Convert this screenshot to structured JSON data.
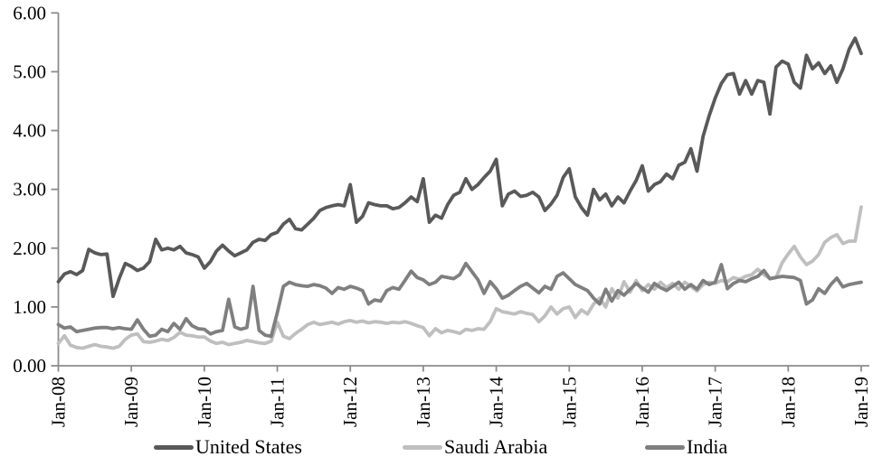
{
  "chart_data": {
    "type": "line",
    "title": "",
    "xlabel": "",
    "ylabel": "",
    "grid": false,
    "background": "#ffffff",
    "axis_color": "#8c8c8c",
    "legend_position": "bottom",
    "x_axis": {
      "frequency": "monthly",
      "start": "Jan-08",
      "end": "Jan-19",
      "tick_labels": [
        "Jan-08",
        "Jan-09",
        "Jan-10",
        "Jan-11",
        "Jan-12",
        "Jan-13",
        "Jan-14",
        "Jan-15",
        "Jan-16",
        "Jan-17",
        "Jan-18",
        "Jan-19"
      ]
    },
    "y_axis": {
      "min": 0,
      "max": 6,
      "step": 1,
      "tick_labels": [
        "0.00",
        "1.00",
        "2.00",
        "3.00",
        "4.00",
        "5.00",
        "6.00"
      ]
    },
    "series": [
      {
        "name": "United States",
        "color": "#595959",
        "values": [
          1.43,
          1.56,
          1.6,
          1.55,
          1.62,
          1.98,
          1.92,
          1.89,
          1.9,
          1.18,
          1.48,
          1.74,
          1.69,
          1.62,
          1.66,
          1.77,
          2.15,
          1.97,
          2.0,
          1.97,
          2.03,
          1.92,
          1.89,
          1.85,
          1.66,
          1.77,
          1.95,
          2.05,
          1.95,
          1.87,
          1.92,
          1.97,
          2.1,
          2.15,
          2.13,
          2.23,
          2.27,
          2.41,
          2.49,
          2.33,
          2.31,
          2.41,
          2.51,
          2.64,
          2.69,
          2.72,
          2.74,
          2.72,
          3.08,
          2.44,
          2.54,
          2.77,
          2.74,
          2.72,
          2.72,
          2.67,
          2.69,
          2.77,
          2.87,
          2.79,
          3.18,
          2.44,
          2.56,
          2.51,
          2.74,
          2.9,
          2.95,
          3.18,
          3.0,
          3.08,
          3.2,
          3.31,
          3.51,
          2.72,
          2.92,
          2.97,
          2.88,
          2.9,
          2.95,
          2.87,
          2.64,
          2.75,
          2.9,
          3.2,
          3.35,
          2.87,
          2.69,
          2.56,
          3.0,
          2.82,
          2.92,
          2.72,
          2.87,
          2.77,
          2.97,
          3.15,
          3.4,
          2.97,
          3.08,
          3.13,
          3.26,
          3.18,
          3.41,
          3.46,
          3.69,
          3.31,
          3.9,
          4.25,
          4.55,
          4.8,
          4.95,
          4.97,
          4.62,
          4.85,
          4.62,
          4.85,
          4.82,
          4.28,
          5.08,
          5.18,
          5.13,
          4.82,
          4.72,
          5.28,
          5.05,
          5.15,
          4.97,
          5.1,
          4.82,
          5.05,
          5.38,
          5.57,
          5.31
        ]
      },
      {
        "name": "Saudi Arabia",
        "color": "#bfbfbf",
        "values": [
          0.38,
          0.51,
          0.35,
          0.31,
          0.3,
          0.33,
          0.36,
          0.33,
          0.32,
          0.3,
          0.33,
          0.45,
          0.52,
          0.54,
          0.41,
          0.4,
          0.42,
          0.45,
          0.43,
          0.48,
          0.57,
          0.52,
          0.51,
          0.49,
          0.49,
          0.42,
          0.38,
          0.4,
          0.36,
          0.38,
          0.4,
          0.43,
          0.41,
          0.39,
          0.38,
          0.42,
          0.74,
          0.5,
          0.46,
          0.55,
          0.62,
          0.7,
          0.74,
          0.7,
          0.72,
          0.74,
          0.71,
          0.75,
          0.77,
          0.74,
          0.76,
          0.73,
          0.75,
          0.74,
          0.72,
          0.74,
          0.73,
          0.75,
          0.72,
          0.68,
          0.65,
          0.51,
          0.63,
          0.56,
          0.6,
          0.58,
          0.55,
          0.62,
          0.6,
          0.63,
          0.62,
          0.75,
          0.97,
          0.92,
          0.9,
          0.88,
          0.92,
          0.89,
          0.87,
          0.75,
          0.85,
          1.0,
          0.88,
          0.97,
          1.0,
          0.82,
          0.95,
          0.88,
          1.05,
          1.15,
          1.0,
          1.31,
          1.15,
          1.43,
          1.25,
          1.45,
          1.28,
          1.38,
          1.3,
          1.42,
          1.33,
          1.4,
          1.3,
          1.42,
          1.35,
          1.27,
          1.38,
          1.42,
          1.4,
          1.45,
          1.43,
          1.5,
          1.47,
          1.52,
          1.55,
          1.64,
          1.55,
          1.48,
          1.5,
          1.75,
          1.9,
          2.03,
          1.85,
          1.72,
          1.78,
          1.89,
          2.1,
          2.18,
          2.23,
          2.08,
          2.12,
          2.12,
          2.7
        ]
      },
      {
        "name": "India",
        "color": "#7f7f7f",
        "values": [
          0.7,
          0.64,
          0.66,
          0.58,
          0.6,
          0.62,
          0.64,
          0.65,
          0.65,
          0.63,
          0.65,
          0.63,
          0.62,
          0.78,
          0.62,
          0.5,
          0.52,
          0.62,
          0.58,
          0.72,
          0.62,
          0.8,
          0.68,
          0.63,
          0.62,
          0.54,
          0.58,
          0.6,
          1.13,
          0.66,
          0.62,
          0.65,
          1.35,
          0.6,
          0.52,
          0.5,
          0.9,
          1.35,
          1.42,
          1.38,
          1.36,
          1.35,
          1.38,
          1.36,
          1.32,
          1.23,
          1.33,
          1.3,
          1.35,
          1.32,
          1.28,
          1.05,
          1.12,
          1.1,
          1.28,
          1.33,
          1.3,
          1.45,
          1.61,
          1.5,
          1.46,
          1.38,
          1.42,
          1.52,
          1.5,
          1.48,
          1.55,
          1.74,
          1.6,
          1.46,
          1.23,
          1.43,
          1.31,
          1.15,
          1.2,
          1.28,
          1.35,
          1.4,
          1.32,
          1.24,
          1.35,
          1.3,
          1.52,
          1.58,
          1.48,
          1.38,
          1.33,
          1.28,
          1.15,
          1.05,
          1.3,
          1.1,
          1.28,
          1.2,
          1.3,
          1.4,
          1.32,
          1.25,
          1.4,
          1.33,
          1.28,
          1.35,
          1.42,
          1.3,
          1.38,
          1.3,
          1.45,
          1.38,
          1.42,
          1.72,
          1.31,
          1.4,
          1.45,
          1.43,
          1.48,
          1.52,
          1.62,
          1.48,
          1.5,
          1.52,
          1.51,
          1.5,
          1.45,
          1.05,
          1.12,
          1.31,
          1.23,
          1.38,
          1.49,
          1.34,
          1.38,
          1.4,
          1.42
        ]
      }
    ]
  },
  "legend": {
    "items": [
      {
        "label": "United States"
      },
      {
        "label": "Saudi Arabia"
      },
      {
        "label": "India"
      }
    ]
  }
}
